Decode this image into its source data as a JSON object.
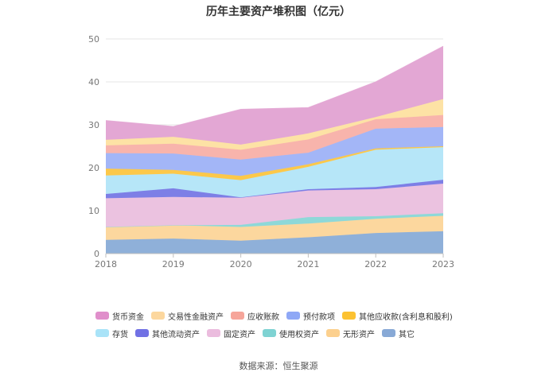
{
  "chart_data": {
    "type": "area",
    "stacked": true,
    "title": "历年主要资产堆积图（亿元）",
    "x": [
      "2018",
      "2019",
      "2020",
      "2021",
      "2022",
      "2023"
    ],
    "ylim": [
      0,
      50
    ],
    "yticks": [
      0,
      10,
      20,
      30,
      40,
      50
    ],
    "grid": true,
    "legend_position": "bottom",
    "series": [
      {
        "name": "其它",
        "color": "#8fb0d9",
        "values": [
          3.2,
          3.5,
          3.0,
          3.8,
          4.8,
          5.2
        ]
      },
      {
        "name": "无形资产",
        "color": "#fcd79e",
        "values": [
          3.0,
          3.1,
          3.2,
          3.2,
          3.3,
          3.6
        ]
      },
      {
        "name": "使用权资产",
        "color": "#8ed8d8",
        "values": [
          0.0,
          0.0,
          0.5,
          1.5,
          0.6,
          0.6
        ]
      },
      {
        "name": "固定资产",
        "color": "#ebc2e0",
        "values": [
          6.7,
          6.6,
          6.3,
          6.2,
          6.3,
          6.9
        ]
      },
      {
        "name": "其他流动资产",
        "color": "#7d7fe6",
        "values": [
          1.0,
          2.0,
          0.1,
          0.3,
          0.5,
          0.9
        ]
      },
      {
        "name": "存货",
        "color": "#b6e6f8",
        "values": [
          4.3,
          3.4,
          4.0,
          5.2,
          8.7,
          7.6
        ]
      },
      {
        "name": "其他应收款(含利息和股利)",
        "color": "#fcc84a",
        "values": [
          1.6,
          0.9,
          1.0,
          0.6,
          0.3,
          0.2
        ]
      },
      {
        "name": "预付款项",
        "color": "#a3b6f7",
        "values": [
          3.6,
          3.8,
          3.8,
          2.7,
          4.6,
          4.5
        ]
      },
      {
        "name": "应收账款",
        "color": "#f8b4ac",
        "values": [
          1.8,
          2.3,
          2.3,
          3.1,
          2.2,
          2.8
        ]
      },
      {
        "name": "交易性金融资产",
        "color": "#fde2a5",
        "values": [
          1.3,
          1.6,
          1.2,
          1.4,
          0.5,
          3.7
        ]
      },
      {
        "name": "货币资金",
        "color": "#e3a7d4",
        "values": [
          4.5,
          2.4,
          8.2,
          6.0,
          8.2,
          12.3
        ]
      }
    ],
    "legend_order": [
      "货币资金",
      "交易性金融资产",
      "应收账款",
      "预付款项",
      "其他应收款(含利息和股利)",
      "存货",
      "其他流动资产",
      "固定资产",
      "使用权资产",
      "无形资产",
      "其它"
    ],
    "legend_colors": {
      "货币资金": "#e08fcb",
      "交易性金融资产": "#fcd79e",
      "应收账款": "#f6a59a",
      "预付款项": "#8fa8f6",
      "其他应收款(含利息和股利)": "#fcc232",
      "存货": "#a9e3f8",
      "其他流动资产": "#7171e4",
      "固定资产": "#ebbcde",
      "使用权资产": "#7fd3d3",
      "无形资产": "#fcd08e",
      "其它": "#88a9d6"
    }
  },
  "source_text": "数据来源：恒生聚源"
}
